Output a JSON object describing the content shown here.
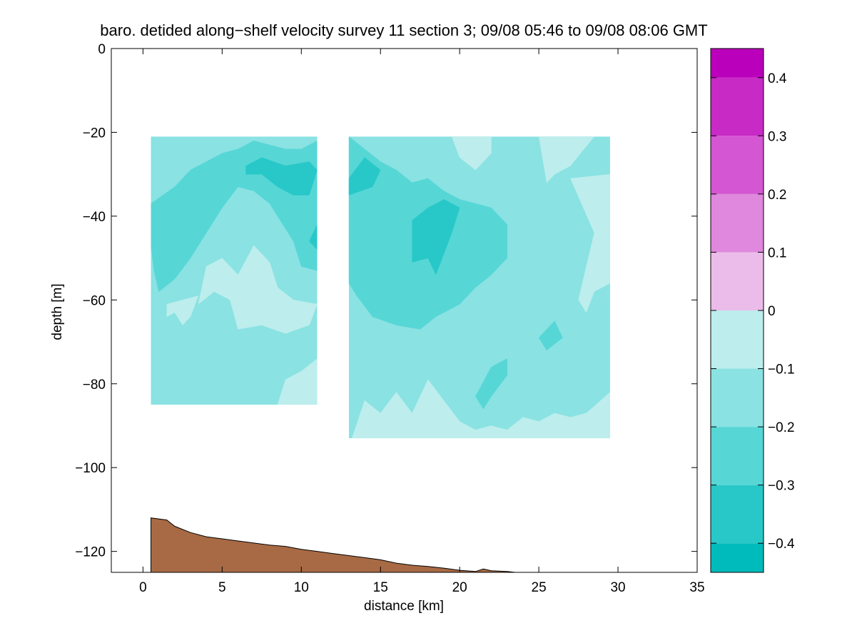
{
  "chart_data": {
    "type": "heatmap",
    "title": "baro. detided along−shelf velocity survey 11 section 3; 09/08 05:46 to 09/08 08:06 GMT",
    "xlabel": "distance [km]",
    "ylabel": "depth [m]",
    "xlim": [
      -2,
      35
    ],
    "ylim": [
      -125,
      0
    ],
    "xticks": [
      0,
      5,
      10,
      15,
      20,
      25,
      30,
      35
    ],
    "yticks": [
      0,
      -20,
      -40,
      -60,
      -80,
      -100,
      -120
    ],
    "xtick_labels": [
      "0",
      "5",
      "10",
      "15",
      "20",
      "25",
      "30",
      "35"
    ],
    "ytick_labels": [
      "0",
      "−20",
      "−40",
      "−60",
      "−80",
      "−100",
      "−120"
    ],
    "colorbar": {
      "levels": [
        -0.45,
        -0.4,
        -0.3,
        -0.2,
        -0.1,
        0,
        0.1,
        0.2,
        0.3,
        0.4,
        0.45
      ],
      "bands": [
        {
          "from": -0.45,
          "to": -0.4,
          "color": "#00bbbb"
        },
        {
          "from": -0.4,
          "to": -0.3,
          "color": "#28c8c8"
        },
        {
          "from": -0.3,
          "to": -0.2,
          "color": "#57d6d6"
        },
        {
          "from": -0.2,
          "to": -0.1,
          "color": "#8ae2e2"
        },
        {
          "from": -0.1,
          "to": 0,
          "color": "#bdeded"
        },
        {
          "from": 0,
          "to": 0.1,
          "color": "#ebbcea"
        },
        {
          "from": 0.1,
          "to": 0.2,
          "color": "#df88de"
        },
        {
          "from": 0.2,
          "to": 0.3,
          "color": "#d456d2"
        },
        {
          "from": 0.3,
          "to": 0.4,
          "color": "#c82ac6"
        },
        {
          "from": 0.4,
          "to": 0.45,
          "color": "#bb00bb"
        }
      ],
      "ticks": [
        0.4,
        0.3,
        0.2,
        0.1,
        0,
        -0.1,
        -0.2,
        -0.3,
        -0.4
      ],
      "tick_labels": [
        "0.4",
        "0.3",
        "0.2",
        "0.1",
        "0",
        "−0.1",
        "−0.2",
        "−0.3",
        "−0.4"
      ]
    },
    "sections": [
      {
        "name": "section-a",
        "x_range": [
          0.5,
          11
        ],
        "depth_range": [
          -21,
          -85
        ],
        "background_level": -0.15,
        "regions": [
          {
            "level": -0.25,
            "points": [
              [
                0.5,
                -37
              ],
              [
                2,
                -33
              ],
              [
                3,
                -29
              ],
              [
                4,
                -27
              ],
              [
                5,
                -25
              ],
              [
                6,
                -24
              ],
              [
                7,
                -22
              ],
              [
                8,
                -23
              ],
              [
                9,
                -24
              ],
              [
                10,
                -24
              ],
              [
                11,
                -22
              ],
              [
                11,
                -53
              ],
              [
                10,
                -52
              ],
              [
                9.5,
                -46
              ],
              [
                9,
                -43
              ],
              [
                8,
                -37
              ],
              [
                7,
                -34
              ],
              [
                6,
                -33
              ],
              [
                5,
                -38
              ],
              [
                4,
                -44
              ],
              [
                3,
                -50
              ],
              [
                2,
                -55
              ],
              [
                1,
                -58
              ],
              [
                0.7,
                -53
              ],
              [
                0.5,
                -47
              ]
            ]
          },
          {
            "level": -0.35,
            "points": [
              [
                6.5,
                -28
              ],
              [
                7.5,
                -26
              ],
              [
                9,
                -28
              ],
              [
                10.5,
                -27
              ],
              [
                11,
                -29
              ],
              [
                10.5,
                -35
              ],
              [
                9.5,
                -35
              ],
              [
                8.5,
                -33
              ],
              [
                7.5,
                -30
              ],
              [
                6.5,
                -30
              ]
            ]
          },
          {
            "level": -0.35,
            "points": [
              [
                10.5,
                -46
              ],
              [
                11,
                -42
              ],
              [
                11,
                -48
              ]
            ]
          },
          {
            "level": -0.05,
            "points": [
              [
                4,
                -52
              ],
              [
                5,
                -50
              ],
              [
                6,
                -54
              ],
              [
                7,
                -47
              ],
              [
                8,
                -51
              ],
              [
                8.5,
                -57
              ],
              [
                9.5,
                -60
              ],
              [
                11,
                -61
              ],
              [
                10.5,
                -66
              ],
              [
                9,
                -68
              ],
              [
                7.5,
                -66
              ],
              [
                6,
                -67
              ],
              [
                5.5,
                -60
              ],
              [
                4.5,
                -58
              ],
              [
                3.5,
                -61
              ]
            ]
          },
          {
            "level": -0.05,
            "points": [
              [
                1.5,
                -61
              ],
              [
                3.5,
                -59
              ],
              [
                3,
                -64
              ],
              [
                2.5,
                -66
              ],
              [
                2,
                -63
              ],
              [
                1.5,
                -64
              ]
            ]
          },
          {
            "level": -0.05,
            "points": [
              [
                8.5,
                -85
              ],
              [
                9,
                -79
              ],
              [
                10,
                -77
              ],
              [
                11,
                -74
              ],
              [
                11,
                -85
              ]
            ]
          }
        ]
      },
      {
        "name": "section-b",
        "x_range": [
          13,
          29.5
        ],
        "depth_range": [
          -21,
          -93
        ],
        "background_level": -0.15,
        "regions": [
          {
            "level": -0.25,
            "points": [
              [
                13,
                -21
              ],
              [
                14,
                -24
              ],
              [
                15,
                -27
              ],
              [
                16,
                -29
              ],
              [
                17,
                -32
              ],
              [
                18,
                -31
              ],
              [
                19,
                -34
              ],
              [
                20,
                -36
              ],
              [
                21,
                -37
              ],
              [
                22,
                -38
              ],
              [
                23,
                -42
              ],
              [
                23,
                -50
              ],
              [
                22,
                -54
              ],
              [
                21,
                -57
              ],
              [
                20,
                -61
              ],
              [
                18.5,
                -64
              ],
              [
                17.5,
                -67
              ],
              [
                16,
                -66
              ],
              [
                14.5,
                -64
              ],
              [
                13.5,
                -59
              ],
              [
                13,
                -56
              ]
            ]
          },
          {
            "level": -0.35,
            "points": [
              [
                13,
                -31
              ],
              [
                14,
                -26
              ],
              [
                15,
                -29
              ],
              [
                14.5,
                -33
              ],
              [
                13,
                -35
              ]
            ]
          },
          {
            "level": -0.35,
            "points": [
              [
                17,
                -41
              ],
              [
                18,
                -38
              ],
              [
                19,
                -36
              ],
              [
                20,
                -38
              ],
              [
                19.5,
                -44
              ],
              [
                18.5,
                -54
              ],
              [
                18,
                -50
              ],
              [
                17,
                -51
              ]
            ]
          },
          {
            "level": -0.05,
            "points": [
              [
                19.5,
                -21
              ],
              [
                22,
                -21
              ],
              [
                22,
                -25
              ],
              [
                21,
                -29
              ],
              [
                20,
                -26
              ]
            ]
          },
          {
            "level": -0.05,
            "points": [
              [
                25,
                -21
              ],
              [
                28.5,
                -21
              ],
              [
                27,
                -28
              ],
              [
                26,
                -30
              ],
              [
                25.5,
                -32
              ]
            ]
          },
          {
            "level": -0.05,
            "points": [
              [
                27,
                -31
              ],
              [
                29.5,
                -30
              ],
              [
                29.5,
                -56
              ],
              [
                28.5,
                -58
              ],
              [
                28,
                -63
              ],
              [
                27.5,
                -60
              ],
              [
                28,
                -52
              ],
              [
                28.5,
                -44
              ]
            ]
          },
          {
            "level": -0.05,
            "points": [
              [
                13.2,
                -93
              ],
              [
                14,
                -84
              ],
              [
                15,
                -87
              ],
              [
                16,
                -82
              ],
              [
                17,
                -87
              ],
              [
                18,
                -79
              ],
              [
                19,
                -84
              ],
              [
                20,
                -89
              ],
              [
                21,
                -91
              ],
              [
                22,
                -90
              ],
              [
                23,
                -91
              ],
              [
                24,
                -88
              ],
              [
                25,
                -89
              ],
              [
                26,
                -87
              ],
              [
                27,
                -88
              ],
              [
                28,
                -87
              ],
              [
                29.5,
                -82
              ],
              [
                29.5,
                -93
              ]
            ]
          },
          {
            "level": -0.25,
            "points": [
              [
                21,
                -83
              ],
              [
                22,
                -76
              ],
              [
                23,
                -74
              ],
              [
                23,
                -78
              ],
              [
                22,
                -83
              ],
              [
                21.5,
                -86
              ]
            ]
          },
          {
            "level": -0.25,
            "points": [
              [
                25,
                -69
              ],
              [
                26,
                -65
              ],
              [
                26.5,
                -69
              ],
              [
                25.5,
                -72
              ]
            ]
          }
        ]
      }
    ],
    "bathymetry": {
      "color": "#a86a44",
      "points": [
        [
          0.5,
          -112
        ],
        [
          1.5,
          -112.5
        ],
        [
          2,
          -114
        ],
        [
          3,
          -115.5
        ],
        [
          4,
          -116.5
        ],
        [
          5,
          -117
        ],
        [
          6,
          -117.5
        ],
        [
          7,
          -118
        ],
        [
          8,
          -118.5
        ],
        [
          9,
          -118.8
        ],
        [
          10,
          -119.5
        ],
        [
          11,
          -120
        ],
        [
          12,
          -120.5
        ],
        [
          13,
          -121
        ],
        [
          14,
          -121.5
        ],
        [
          15,
          -122
        ],
        [
          16,
          -122.8
        ],
        [
          17,
          -123.3
        ],
        [
          18,
          -123.6
        ],
        [
          19,
          -124
        ],
        [
          20,
          -124.5
        ],
        [
          21,
          -124.8
        ],
        [
          21.5,
          -124.2
        ],
        [
          22,
          -124.6
        ],
        [
          23,
          -124.8
        ],
        [
          23.5,
          -125
        ]
      ]
    }
  }
}
